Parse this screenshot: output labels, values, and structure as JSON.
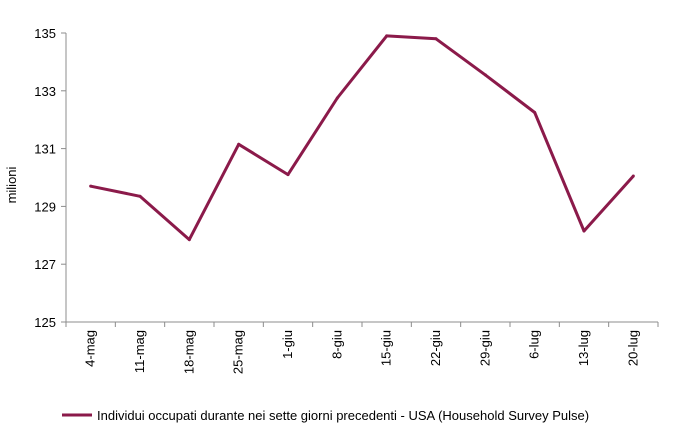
{
  "chart_data": {
    "type": "line",
    "categories": [
      "4-mag",
      "11-mag",
      "18-mag",
      "25-mag",
      "1-giu",
      "8-giu",
      "15-giu",
      "22-giu",
      "29-giu",
      "6-lug",
      "13-lug",
      "20-lug"
    ],
    "series": [
      {
        "name": "Individui occupati durante nei sette giorni precedenti - USA (Household Survey Pulse)",
        "values": [
          129.7,
          129.35,
          127.85,
          131.15,
          130.1,
          132.75,
          134.9,
          134.8,
          133.55,
          132.25,
          128.15,
          130.05
        ],
        "color": "#8b1a4a"
      }
    ],
    "ylabel": "milioni",
    "xlabel": "",
    "ylim": [
      125,
      135
    ],
    "yticks": [
      125,
      127,
      129,
      131,
      133,
      135
    ],
    "grid": false,
    "legend_position": "bottom"
  }
}
